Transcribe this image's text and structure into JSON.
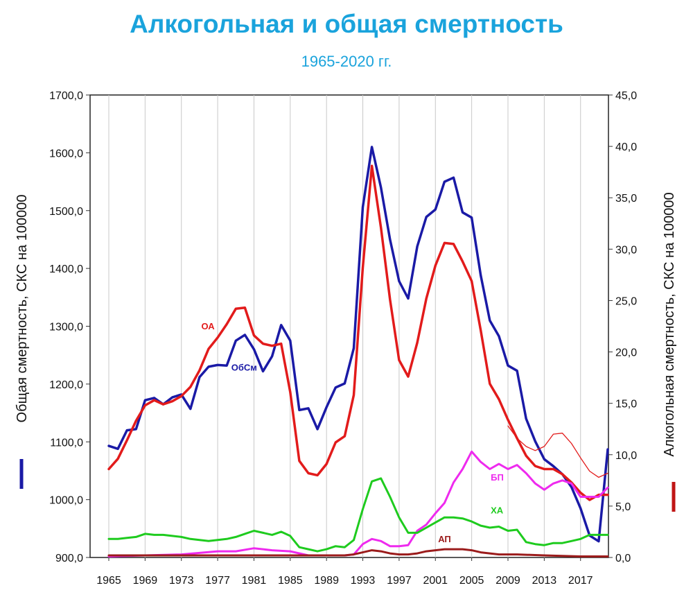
{
  "chart_data": {
    "type": "line",
    "title": "Алкогольная и общая смертность",
    "subtitle": "1965-2020 гг.",
    "ylabel_left": "Общая смертность, СКС на 100000",
    "ylabel_right": "Алкогольная смертность, СКС на 100000",
    "ylim_left": [
      900,
      1700
    ],
    "ylim_right": [
      0,
      45
    ],
    "xlim": [
      1965,
      2020
    ],
    "x_tick_labels": [
      "1965",
      "1969",
      "1973",
      "1977",
      "1981",
      "1985",
      "1989",
      "1993",
      "1997",
      "2001",
      "2005",
      "2009",
      "2013",
      "2017"
    ],
    "y_left_tick_labels": [
      "900,0",
      "1000,0",
      "1100,0",
      "1200,0",
      "1300,0",
      "1400,0",
      "1500,0",
      "1600,0",
      "1700,0"
    ],
    "y_right_tick_labels": [
      "0,0",
      "5,0",
      "10,0",
      "15,0",
      "20,0",
      "25,0",
      "30,0",
      "35,0",
      "40,0",
      "45,0"
    ],
    "grid": "vertical",
    "series": [
      {
        "name": "ОбСм",
        "axis": "left",
        "color": "#1a1aa6",
        "width": 3.5,
        "label_at": [
          1978.5,
          1223
        ],
        "points": [
          [
            1965,
            1093
          ],
          [
            1966,
            1088
          ],
          [
            1967,
            1120
          ],
          [
            1968,
            1122
          ],
          [
            1969,
            1172
          ],
          [
            1970,
            1176
          ],
          [
            1971,
            1165
          ],
          [
            1972,
            1177
          ],
          [
            1973,
            1182
          ],
          [
            1974,
            1157
          ],
          [
            1975,
            1212
          ],
          [
            1976,
            1230
          ],
          [
            1977,
            1233
          ],
          [
            1978,
            1232
          ],
          [
            1979,
            1275
          ],
          [
            1980,
            1285
          ],
          [
            1981,
            1260
          ],
          [
            1982,
            1222
          ],
          [
            1983,
            1248
          ],
          [
            1984,
            1302
          ],
          [
            1985,
            1275
          ],
          [
            1986,
            1155
          ],
          [
            1987,
            1158
          ],
          [
            1988,
            1122
          ],
          [
            1989,
            1160
          ],
          [
            1990,
            1194
          ],
          [
            1991,
            1201
          ],
          [
            1992,
            1262
          ],
          [
            1993,
            1506
          ],
          [
            1994,
            1610
          ],
          [
            1995,
            1540
          ],
          [
            1996,
            1450
          ],
          [
            1997,
            1378
          ],
          [
            1998,
            1348
          ],
          [
            1999,
            1438
          ],
          [
            2000,
            1489
          ],
          [
            2001,
            1502
          ],
          [
            2002,
            1550
          ],
          [
            2003,
            1557
          ],
          [
            2004,
            1497
          ],
          [
            2005,
            1488
          ],
          [
            2006,
            1388
          ],
          [
            2007,
            1310
          ],
          [
            2008,
            1283
          ],
          [
            2009,
            1232
          ],
          [
            2010,
            1223
          ],
          [
            2011,
            1140
          ],
          [
            2012,
            1101
          ],
          [
            2013,
            1070
          ],
          [
            2014,
            1058
          ],
          [
            2015,
            1044
          ],
          [
            2016,
            1022
          ],
          [
            2017,
            985
          ],
          [
            2018,
            938
          ],
          [
            2019,
            928
          ],
          [
            2020,
            1087
          ]
        ]
      },
      {
        "name": "ОА",
        "axis": "right",
        "color": "#e21b1b",
        "width": 3.5,
        "label_at": [
          1975.2,
          22.2
        ],
        "points": [
          [
            1965,
            8.6
          ],
          [
            1966,
            9.6
          ],
          [
            1967,
            11.4
          ],
          [
            1968,
            13.3
          ],
          [
            1969,
            14.8
          ],
          [
            1970,
            15.3
          ],
          [
            1971,
            14.9
          ],
          [
            1972,
            15.2
          ],
          [
            1973,
            15.7
          ],
          [
            1974,
            16.6
          ],
          [
            1975,
            18.2
          ],
          [
            1976,
            20.3
          ],
          [
            1977,
            21.4
          ],
          [
            1978,
            22.7
          ],
          [
            1979,
            24.2
          ],
          [
            1980,
            24.3
          ],
          [
            1981,
            21.6
          ],
          [
            1982,
            20.8
          ],
          [
            1983,
            20.6
          ],
          [
            1984,
            20.8
          ],
          [
            1985,
            16.1
          ],
          [
            1986,
            9.4
          ],
          [
            1987,
            8.2
          ],
          [
            1988,
            8.0
          ],
          [
            1989,
            9.1
          ],
          [
            1990,
            11.2
          ],
          [
            1991,
            11.8
          ],
          [
            1992,
            15.8
          ],
          [
            1993,
            28.2
          ],
          [
            1994,
            38.1
          ],
          [
            1995,
            32.1
          ],
          [
            1996,
            25.1
          ],
          [
            1997,
            19.2
          ],
          [
            1998,
            17.6
          ],
          [
            1999,
            20.9
          ],
          [
            2000,
            25.2
          ],
          [
            2001,
            28.4
          ],
          [
            2002,
            30.6
          ],
          [
            2003,
            30.5
          ],
          [
            2004,
            28.8
          ],
          [
            2005,
            26.9
          ],
          [
            2006,
            22.1
          ],
          [
            2007,
            16.9
          ],
          [
            2008,
            15.4
          ],
          [
            2009,
            13.4
          ],
          [
            2010,
            11.6
          ],
          [
            2011,
            9.9
          ],
          [
            2012,
            8.9
          ],
          [
            2013,
            8.6
          ],
          [
            2014,
            8.6
          ],
          [
            2015,
            8.1
          ],
          [
            2016,
            7.3
          ],
          [
            2017,
            6.3
          ],
          [
            2018,
            5.6
          ],
          [
            2019,
            6.1
          ],
          [
            2020,
            6.1
          ]
        ]
      },
      {
        "name": "",
        "axis": "right",
        "color": "#e21b1b",
        "width": 1.3,
        "points": [
          [
            2009,
            12.8
          ],
          [
            2010,
            11.6
          ],
          [
            2011,
            10.8
          ],
          [
            2012,
            10.4
          ],
          [
            2013,
            10.8
          ],
          [
            2014,
            12.0
          ],
          [
            2015,
            12.1
          ],
          [
            2016,
            11.1
          ],
          [
            2017,
            9.7
          ],
          [
            2018,
            8.4
          ],
          [
            2019,
            7.8
          ],
          [
            2020,
            8.2
          ]
        ]
      },
      {
        "name": "БП",
        "axis": "right",
        "color": "#ee2aee",
        "width": 3,
        "label_at": [
          2007.1,
          7.5
        ],
        "points": [
          [
            1965,
            0.1
          ],
          [
            1969,
            0.2
          ],
          [
            1973,
            0.3
          ],
          [
            1977,
            0.6
          ],
          [
            1979,
            0.6
          ],
          [
            1981,
            0.9
          ],
          [
            1983,
            0.7
          ],
          [
            1985,
            0.6
          ],
          [
            1987,
            0.2
          ],
          [
            1989,
            0.2
          ],
          [
            1991,
            0.2
          ],
          [
            1992,
            0.3
          ],
          [
            1993,
            1.3
          ],
          [
            1994,
            1.8
          ],
          [
            1995,
            1.6
          ],
          [
            1996,
            1.1
          ],
          [
            1997,
            1.1
          ],
          [
            1998,
            1.2
          ],
          [
            1999,
            2.6
          ],
          [
            2000,
            3.2
          ],
          [
            2001,
            4.3
          ],
          [
            2002,
            5.3
          ],
          [
            2003,
            7.3
          ],
          [
            2004,
            8.6
          ],
          [
            2005,
            10.3
          ],
          [
            2006,
            9.3
          ],
          [
            2007,
            8.6
          ],
          [
            2008,
            9.1
          ],
          [
            2009,
            8.6
          ],
          [
            2010,
            9.0
          ],
          [
            2011,
            8.2
          ],
          [
            2012,
            7.2
          ],
          [
            2013,
            6.6
          ],
          [
            2014,
            7.2
          ],
          [
            2015,
            7.5
          ],
          [
            2016,
            7.2
          ],
          [
            2017,
            5.9
          ],
          [
            2018,
            5.9
          ],
          [
            2019,
            5.9
          ],
          [
            2020,
            6.8
          ]
        ]
      },
      {
        "name": "ХА",
        "axis": "right",
        "color": "#1ecb1e",
        "width": 3,
        "label_at": [
          2007.1,
          4.3
        ],
        "points": [
          [
            1965,
            1.8
          ],
          [
            1966,
            1.8
          ],
          [
            1967,
            1.9
          ],
          [
            1968,
            2.0
          ],
          [
            1969,
            2.3
          ],
          [
            1970,
            2.2
          ],
          [
            1971,
            2.2
          ],
          [
            1972,
            2.1
          ],
          [
            1973,
            2.0
          ],
          [
            1974,
            1.8
          ],
          [
            1975,
            1.7
          ],
          [
            1976,
            1.6
          ],
          [
            1977,
            1.7
          ],
          [
            1978,
            1.8
          ],
          [
            1979,
            2.0
          ],
          [
            1980,
            2.3
          ],
          [
            1981,
            2.6
          ],
          [
            1982,
            2.4
          ],
          [
            1983,
            2.2
          ],
          [
            1984,
            2.5
          ],
          [
            1985,
            2.1
          ],
          [
            1986,
            1.0
          ],
          [
            1987,
            0.8
          ],
          [
            1988,
            0.6
          ],
          [
            1989,
            0.8
          ],
          [
            1990,
            1.1
          ],
          [
            1991,
            1.0
          ],
          [
            1992,
            1.7
          ],
          [
            1993,
            4.7
          ],
          [
            1994,
            7.4
          ],
          [
            1995,
            7.7
          ],
          [
            1996,
            5.9
          ],
          [
            1997,
            3.9
          ],
          [
            1998,
            2.4
          ],
          [
            1999,
            2.4
          ],
          [
            2000,
            2.9
          ],
          [
            2001,
            3.4
          ],
          [
            2002,
            3.9
          ],
          [
            2003,
            3.9
          ],
          [
            2004,
            3.8
          ],
          [
            2005,
            3.5
          ],
          [
            2006,
            3.1
          ],
          [
            2007,
            2.9
          ],
          [
            2008,
            3.0
          ],
          [
            2009,
            2.6
          ],
          [
            2010,
            2.7
          ],
          [
            2011,
            1.5
          ],
          [
            2012,
            1.3
          ],
          [
            2013,
            1.2
          ],
          [
            2014,
            1.4
          ],
          [
            2015,
            1.4
          ],
          [
            2016,
            1.6
          ],
          [
            2017,
            1.8
          ],
          [
            2018,
            2.2
          ],
          [
            2019,
            2.2
          ],
          [
            2020,
            2.2
          ]
        ]
      },
      {
        "name": "АП",
        "axis": "right",
        "color": "#9b1b1b",
        "width": 3,
        "label_at": [
          2001.3,
          1.5
        ],
        "points": [
          [
            1965,
            0.2
          ],
          [
            1969,
            0.2
          ],
          [
            1973,
            0.2
          ],
          [
            1977,
            0.2
          ],
          [
            1981,
            0.2
          ],
          [
            1985,
            0.2
          ],
          [
            1989,
            0.2
          ],
          [
            1991,
            0.2
          ],
          [
            1992,
            0.3
          ],
          [
            1993,
            0.5
          ],
          [
            1994,
            0.7
          ],
          [
            1995,
            0.6
          ],
          [
            1996,
            0.4
          ],
          [
            1997,
            0.3
          ],
          [
            1998,
            0.3
          ],
          [
            1999,
            0.4
          ],
          [
            2000,
            0.6
          ],
          [
            2001,
            0.7
          ],
          [
            2002,
            0.8
          ],
          [
            2003,
            0.8
          ],
          [
            2004,
            0.8
          ],
          [
            2005,
            0.7
          ],
          [
            2006,
            0.5
          ],
          [
            2007,
            0.4
          ],
          [
            2008,
            0.3
          ],
          [
            2009,
            0.3
          ],
          [
            2010,
            0.3
          ],
          [
            2013,
            0.2
          ],
          [
            2017,
            0.1
          ],
          [
            2020,
            0.1
          ]
        ]
      }
    ]
  }
}
